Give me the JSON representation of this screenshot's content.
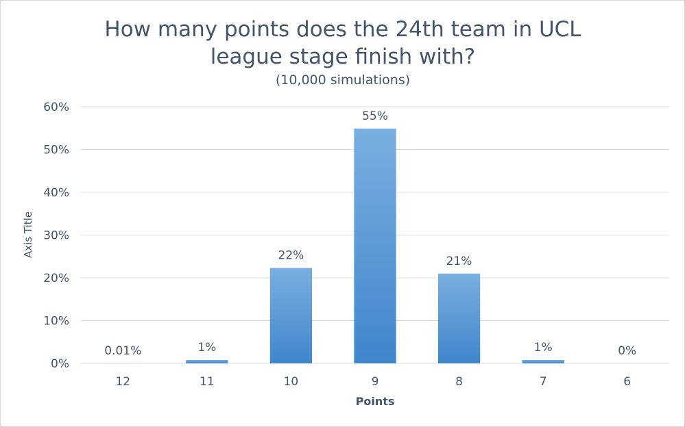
{
  "chart_data": {
    "type": "bar",
    "title_lines": [
      "How many points does the 24th team in UCL",
      "league stage finish with?"
    ],
    "subtitle": "(10,000 simulations)",
    "xlabel": "Points",
    "ylabel": "Axis Title",
    "categories": [
      "12",
      "11",
      "10",
      "9",
      "8",
      "7",
      "6"
    ],
    "values": [
      0.01,
      0.8,
      22.3,
      54.9,
      21.0,
      0.8,
      0.0
    ],
    "data_labels": [
      "0.01%",
      "1%",
      "22%",
      "55%",
      "21%",
      "1%",
      "0%"
    ],
    "ylim": [
      0,
      60
    ],
    "yticks": [
      0,
      10,
      20,
      30,
      40,
      50,
      60
    ],
    "ytick_labels": [
      "0%",
      "10%",
      "20%",
      "30%",
      "40%",
      "50%",
      "60%"
    ],
    "grid": true,
    "legend": "none",
    "bar_color_top": "#7aaee0",
    "bar_color_bottom": "#3f86cc",
    "text_color": "#44546a",
    "grid_color": "#d9d9d9"
  }
}
